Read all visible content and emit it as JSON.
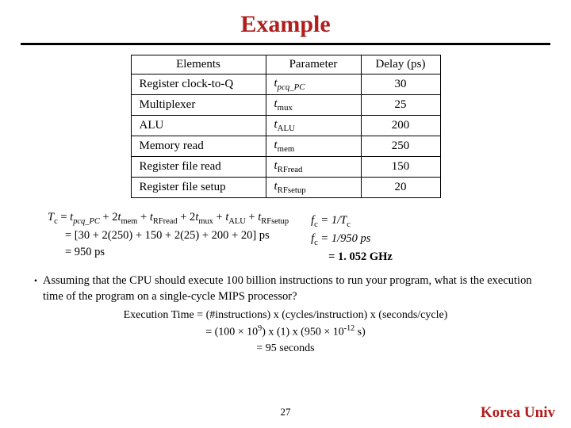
{
  "title": {
    "text": "Example",
    "color": "#b01e1e",
    "fontsize": 30
  },
  "hr_color": "#000000",
  "table": {
    "columns": [
      "Elements",
      "Parameter",
      "Delay (ps)"
    ],
    "rows": [
      {
        "elem": "Register clock-to-Q",
        "param_base": "t",
        "param_sub": "pcq_PC",
        "param_sub_italic": true,
        "delay": "30"
      },
      {
        "elem": "Multiplexer",
        "param_base": "t",
        "param_sub": "mux",
        "param_sub_italic": false,
        "delay": "25"
      },
      {
        "elem": "ALU",
        "param_base": "t",
        "param_sub": "ALU",
        "param_sub_italic": false,
        "delay": "200"
      },
      {
        "elem": "Memory read",
        "param_base": "t",
        "param_sub": "mem",
        "param_sub_italic": false,
        "delay": "250"
      },
      {
        "elem": "Register file read",
        "param_base": "t",
        "param_sub": "RFread",
        "param_sub_italic": false,
        "delay": "150"
      },
      {
        "elem": "Register file setup",
        "param_base": "t",
        "param_sub": "RFsetup",
        "param_sub_italic": false,
        "delay": "20"
      }
    ],
    "border_color": "#000000",
    "fontsize": 15
  },
  "equation": {
    "line1_lhs": "Tc",
    "line1_rhs_plain": " = tpcq_PC + 2tmem + tRFread + 2tmux + tALU + tRFsetup",
    "line2": "= [30 + 2(250) + 150 + 2(25) + 200 + 20] ps",
    "line3": "= 950 ps"
  },
  "freq": {
    "line1": "fc = 1/Tc",
    "line2": "fc = 1/950 ps",
    "line3": "= 1. 052 GHz"
  },
  "bullet": {
    "text": "Assuming that the CPU should execute 100 billion instructions to run your program, what is the execution time of the program on a single-cycle MIPS processor?"
  },
  "exec": {
    "line1": "Execution Time = (#instructions) x (cycles/instruction) x (seconds/cycle)",
    "line2_pre": "= (100 × 10",
    "line2_exp1": "9",
    "line2_mid": ") x (1) x (950  × 10",
    "line2_exp2": "-12",
    "line2_post": " s)",
    "line3": "= 95 seconds"
  },
  "page_number": "27",
  "brand": {
    "text": "Korea Univ",
    "color": "#b01e1e"
  }
}
